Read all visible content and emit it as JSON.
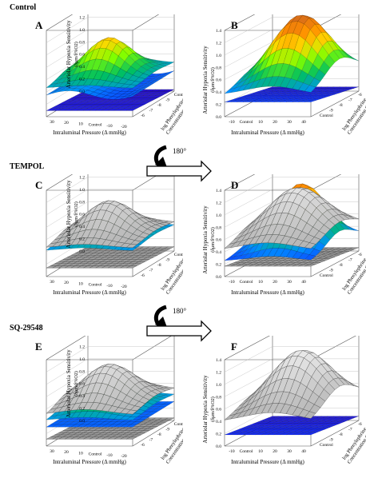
{
  "sections": {
    "control": "Control",
    "tempol": "TEMPOL",
    "sq": "SQ-29548"
  },
  "panels": {
    "A": "A",
    "B": "B",
    "C": "C",
    "D": "D",
    "E": "E",
    "F": "F"
  },
  "axes": {
    "z_title_1": "Arteriolar Hypoxia Sensitivity",
    "z_title_2": "(δμm/δ%O",
    "z_title_2_sub": "2",
    "z_title_2_end": ")",
    "x_title": "Intraluminal Pressure (Δ mmHg)",
    "y_title_1": "log Phenylephrine",
    "y_title_2": "Concentration (M)",
    "z_ticks": [
      "0.0",
      "0.2",
      "0.4",
      "0.6",
      "0.8",
      "1.0",
      "1.2",
      "1.4"
    ],
    "x_ticks_left": [
      "30",
      "20",
      "10",
      "Control",
      "-10",
      "-20"
    ],
    "x_ticks_right": [
      "-10",
      "Control",
      "10",
      "20",
      "30",
      "40"
    ],
    "y_ticks_left": [
      "-6",
      "-7",
      "-8",
      "-9",
      "Control"
    ],
    "y_ticks_right": [
      "Control",
      "-9",
      "-8",
      "-7",
      "-6"
    ]
  },
  "rotation_label": "180°",
  "colors": {
    "surface_gradient": [
      "#d2691e",
      "#ff8c00",
      "#ffd700",
      "#7fff00",
      "#00c060",
      "#0090ff",
      "#1030ff",
      "#3010c0"
    ],
    "gray_surface": "#b8b8b8",
    "gray_surface_dark": "#777777"
  }
}
